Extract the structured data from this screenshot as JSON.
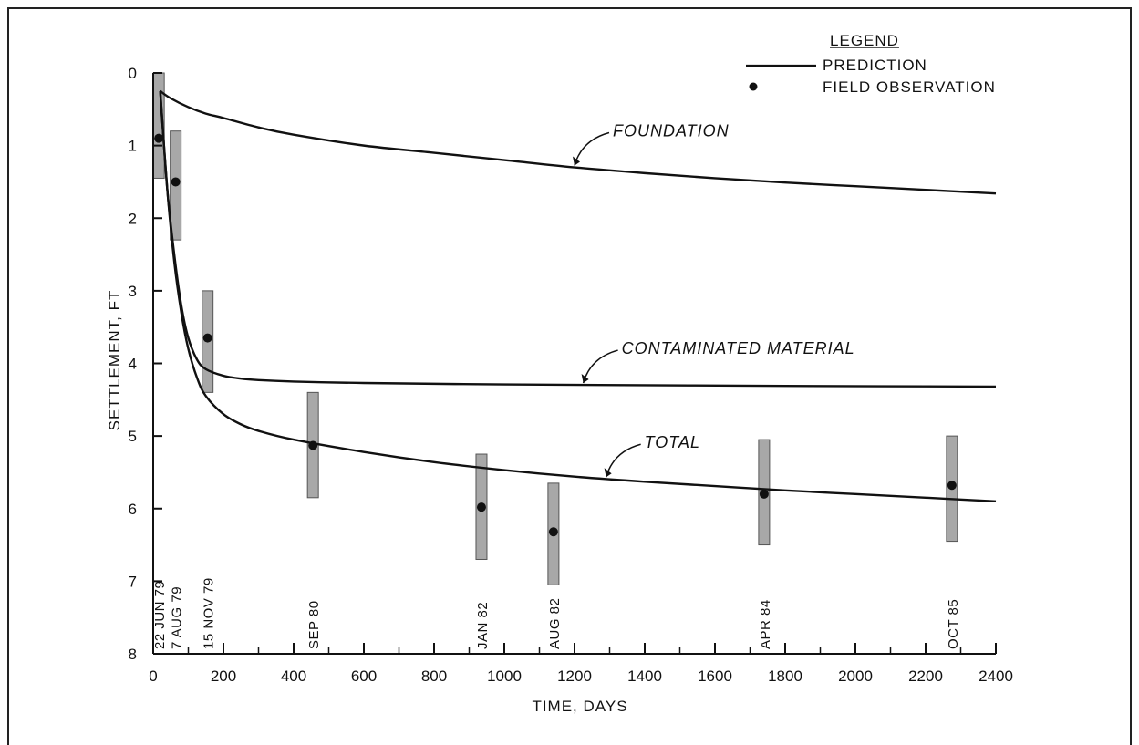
{
  "chart_data": {
    "type": "line",
    "title": "",
    "xlabel": "TIME, DAYS",
    "ylabel": "SETTLEMENT, FT",
    "xlim": [
      0,
      2400
    ],
    "ylim": [
      0,
      8
    ],
    "y_inverted": true,
    "x_ticks": [
      "0",
      "200",
      "400",
      "600",
      "800",
      "1000",
      "1200",
      "1400",
      "1600",
      "1800",
      "2000",
      "2200",
      "2400"
    ],
    "x_tick_values": [
      0,
      200,
      400,
      600,
      800,
      1000,
      1200,
      1400,
      1600,
      1800,
      2000,
      2200,
      2400
    ],
    "y_ticks": [
      "0",
      "1",
      "2",
      "3",
      "4",
      "5",
      "6",
      "7",
      "8"
    ],
    "y_tick_values": [
      0,
      1,
      2,
      3,
      4,
      5,
      6,
      7,
      8
    ],
    "grid": false,
    "legend": {
      "title": "LEGEND",
      "position": "top-right",
      "entries": [
        {
          "symbol": "line",
          "label": "PREDICTION"
        },
        {
          "symbol": "dot",
          "label": "FIELD OBSERVATION"
        }
      ]
    },
    "series": [
      {
        "label": "FOUNDATION",
        "style": "line",
        "x": [
          20,
          50,
          100,
          150,
          200,
          300,
          400,
          600,
          800,
          1000,
          1200,
          1400,
          1600,
          1800,
          2000,
          2200,
          2400
        ],
        "y": [
          0.25,
          0.35,
          0.47,
          0.56,
          0.62,
          0.75,
          0.85,
          1.0,
          1.1,
          1.2,
          1.3,
          1.38,
          1.45,
          1.51,
          1.56,
          1.61,
          1.66
        ]
      },
      {
        "label": "CONTAMINATED MATERIAL",
        "style": "line",
        "x": [
          20,
          40,
          60,
          80,
          100,
          125,
          150,
          200,
          250,
          300,
          400,
          600,
          1000,
          1400,
          1800,
          2400
        ],
        "y": [
          0.25,
          1.6,
          2.5,
          3.2,
          3.65,
          3.95,
          4.08,
          4.17,
          4.21,
          4.23,
          4.25,
          4.27,
          4.29,
          4.3,
          4.31,
          4.32
        ]
      },
      {
        "label": "TOTAL",
        "style": "line",
        "x": [
          20,
          40,
          60,
          80,
          100,
          125,
          150,
          200,
          250,
          300,
          400,
          600,
          800,
          1000,
          1200,
          1400,
          1600,
          1800,
          2000,
          2200,
          2400
        ],
        "y": [
          0.25,
          1.6,
          2.6,
          3.3,
          3.8,
          4.2,
          4.45,
          4.7,
          4.84,
          4.93,
          5.05,
          5.22,
          5.36,
          5.47,
          5.56,
          5.63,
          5.69,
          5.75,
          5.8,
          5.85,
          5.9
        ]
      }
    ],
    "observations": [
      {
        "x": 16,
        "y": 0.9,
        "y_low": 0.0,
        "y_high": 1.45,
        "date": "22 JUN 79"
      },
      {
        "x": 64,
        "y": 1.5,
        "y_low": 0.8,
        "y_high": 2.3,
        "date": "7 AUG 79"
      },
      {
        "x": 155,
        "y": 3.65,
        "y_low": 3.0,
        "y_high": 4.4,
        "date": "15 NOV 79"
      },
      {
        "x": 455,
        "y": 5.13,
        "y_low": 4.4,
        "y_high": 5.85,
        "date": "SEP 80"
      },
      {
        "x": 935,
        "y": 5.98,
        "y_low": 5.25,
        "y_high": 6.7,
        "date": "JAN 82"
      },
      {
        "x": 1140,
        "y": 6.32,
        "y_low": 5.65,
        "y_high": 7.05,
        "date": "AUG 82"
      },
      {
        "x": 1740,
        "y": 5.8,
        "y_low": 5.05,
        "y_high": 6.5,
        "date": "APR 84"
      },
      {
        "x": 2275,
        "y": 5.68,
        "y_low": 5.0,
        "y_high": 6.45,
        "date": "OCT 85"
      }
    ],
    "annotations": [
      {
        "text": "FOUNDATION",
        "series": "FOUNDATION",
        "at_x": 1200
      },
      {
        "text": "CONTAMINATED MATERIAL",
        "series": "CONTAMINATED MATERIAL",
        "at_x": 1225
      },
      {
        "text": "TOTAL",
        "series": "TOTAL",
        "at_x": 1290
      }
    ],
    "colors": {
      "line": "#111111",
      "bar_fill": "#a8a8a8",
      "bar_stroke": "#555555",
      "dot": "#111111"
    }
  }
}
